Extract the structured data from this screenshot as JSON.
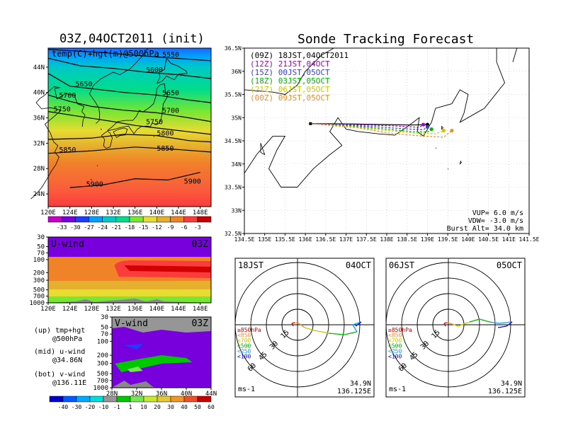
{
  "left_title": "03Z,04OCT2011 (init)",
  "right_title": "Sonde Tracking Forecast",
  "side_notes": [
    {
      "line1": "(up) tmp+hgt",
      "line2": "@500hPa"
    },
    {
      "line1": "(mid) u-wind",
      "line2": "@34.86N"
    },
    {
      "line1": "(bot) v-wind",
      "line2": "@136.11E"
    }
  ],
  "chart_data": [
    {
      "id": "temp-hgt-map",
      "type": "heatmap",
      "title": "temp(C)+hgt(m)@500hPa",
      "x_ticks": [
        "120E",
        "124E",
        "128E",
        "132E",
        "136E",
        "140E",
        "144E",
        "148E"
      ],
      "y_ticks": [
        "24N",
        "28N",
        "32N",
        "36N",
        "40N",
        "44N"
      ],
      "xlim": [
        120,
        150
      ],
      "ylim": [
        22,
        47
      ],
      "colorbar_ticks": [
        "-33",
        "-30",
        "-27",
        "-24",
        "-21",
        "-18",
        "-15",
        "-12",
        "-9",
        "-6",
        "-3"
      ],
      "colorbar_colors": [
        "#c800c8",
        "#7800dc",
        "#1e3cff",
        "#00a0ff",
        "#00c8c8",
        "#00dc8c",
        "#78e632",
        "#e6dc32",
        "#e6af2d",
        "#f08228",
        "#fa3c3c",
        "#c80000"
      ],
      "contours": [
        {
          "label": "5550",
          "points": [
            [
              120,
              46.8
            ],
            [
              130,
              46.3
            ],
            [
              140,
              45.6
            ],
            [
              150,
              45.0
            ]
          ],
          "label_pos": [
            141,
            45.6
          ]
        },
        {
          "label": "5600",
          "points": [
            [
              120,
              45.4
            ],
            [
              126,
              44.2
            ],
            [
              132,
              43.8
            ],
            [
              138,
              43.2
            ],
            [
              144,
              42.8
            ],
            [
              150,
              42.2
            ]
          ],
          "label_pos": [
            138,
            43.2
          ]
        },
        {
          "label": "5650",
          "points": [
            [
              120,
              43.0
            ],
            [
              124,
              41.0
            ],
            [
              128,
              40.6
            ],
            [
              134,
              40.0
            ],
            [
              140,
              39.6
            ],
            [
              146,
              38.8
            ],
            [
              150,
              38.4
            ]
          ],
          "label_pos": [
            125,
            41.0
          ]
        },
        {
          "label": "5650",
          "points": [],
          "label_pos": [
            141,
            39.6
          ]
        },
        {
          "label": "5700",
          "points": [
            [
              120,
              39.6
            ],
            [
              124,
              38.6
            ],
            [
              128,
              37.8
            ],
            [
              134,
              37.2
            ],
            [
              140,
              36.8
            ],
            [
              146,
              36.0
            ],
            [
              150,
              35.4
            ]
          ],
          "label_pos": [
            122,
            39.2
          ]
        },
        {
          "label": "5700",
          "points": [],
          "label_pos": [
            141,
            36.8
          ]
        },
        {
          "label": "5750",
          "points": [
            [
              120,
              37.0
            ],
            [
              126,
              36.2
            ],
            [
              132,
              35.4
            ],
            [
              136,
              34.8
            ],
            [
              140,
              34.4
            ],
            [
              146,
              33.8
            ],
            [
              150,
              33.4
            ]
          ],
          "label_pos": [
            121,
            37.0
          ]
        },
        {
          "label": "5750",
          "points": [],
          "label_pos": [
            138,
            35.0
          ]
        },
        {
          "label": "5800",
          "points": [
            [
              120,
              32.6
            ],
            [
              128,
              32.8
            ],
            [
              134,
              33.4
            ],
            [
              140,
              33.2
            ],
            [
              146,
              32.4
            ],
            [
              150,
              32.2
            ]
          ],
          "label_pos": [
            140,
            33.2
          ]
        },
        {
          "label": "5850",
          "points": [
            [
              120,
              30.4
            ],
            [
              128,
              30.8
            ],
            [
              136,
              31.4
            ],
            [
              144,
              31.0
            ],
            [
              150,
              30.6
            ]
          ],
          "label_pos": [
            122,
            30.6
          ]
        },
        {
          "label": "5850",
          "points": [],
          "label_pos": [
            140,
            30.8
          ]
        },
        {
          "label": "5900",
          "points": [
            [
              124,
              25.0
            ],
            [
              130,
              25.4
            ],
            [
              136,
              26.4
            ],
            [
              142,
              26.2
            ],
            [
              148,
              27.4
            ]
          ],
          "label_pos": [
            127,
            25.2
          ]
        },
        {
          "label": "5900",
          "points": [],
          "label_pos": [
            145,
            25.6
          ]
        }
      ]
    },
    {
      "id": "u-wind-section",
      "type": "heatmap",
      "title": "U-wind",
      "time_label": "03Z",
      "x_ticks": [
        "120E",
        "124E",
        "128E",
        "132E",
        "136E",
        "140E",
        "144E",
        "148E"
      ],
      "y_ticks": [
        "30",
        "50",
        "70",
        "100",
        "200",
        "300",
        "500",
        "700",
        "1000"
      ],
      "xlim": [
        120,
        150
      ],
      "ylim_hpa": [
        1000,
        30
      ]
    },
    {
      "id": "v-wind-section",
      "type": "heatmap",
      "title": "V-wind",
      "time_label": "03Z",
      "x_ticks": [
        "28N",
        "32N",
        "36N",
        "40N",
        "44N"
      ],
      "y_ticks": [
        "30",
        "50",
        "70",
        "100",
        "200",
        "300",
        "500",
        "700",
        "1000"
      ],
      "xlim": [
        28,
        44
      ],
      "ylim_hpa": [
        1000,
        30
      ],
      "colorbar_ticks": [
        "-40",
        "-30",
        "-20",
        "-10",
        "-1",
        "1",
        "10",
        "20",
        "30",
        "40",
        "50",
        "60"
      ],
      "colorbar_colors": [
        "#0000c8",
        "#005aff",
        "#00aaff",
        "#00dcdc",
        "#969696",
        "#00c800",
        "#78e650",
        "#c8e632",
        "#e6c832",
        "#f09628",
        "#f05028",
        "#c80000"
      ]
    },
    {
      "id": "sonde-track-map",
      "type": "line",
      "x_ticks": [
        "134.5E",
        "135E",
        "135.5E",
        "136E",
        "136.5E",
        "137E",
        "137.5E",
        "138E",
        "138.5E",
        "139E",
        "139.5E",
        "140E",
        "140.5E",
        "141E",
        "141.5E"
      ],
      "y_ticks": [
        "32.5N",
        "33N",
        "33.5N",
        "34N",
        "34.5N",
        "35N",
        "35.5N",
        "36N",
        "36.5N"
      ],
      "xlim": [
        134.5,
        141.5
      ],
      "ylim": [
        32.5,
        36.5
      ],
      "series": [
        {
          "name": "(09Z)  18JST,04OCT2011",
          "color": "#000000"
        },
        {
          "name": "(12Z)  21JST,04OCT",
          "color": "#a000c8"
        },
        {
          "name": "(15Z)  00JST,05OCT",
          "color": "#3c3cdc"
        },
        {
          "name": "(18Z)  03JST,05OCT",
          "color": "#00b400"
        },
        {
          "name": "(21Z)  06JST,05OCT",
          "color": "#c8c800"
        },
        {
          "name": "(00Z)  09JST,05OCT",
          "color": "#f08c28"
        }
      ],
      "params": [
        "VUP=  6.0  m/s",
        "VDW= -3.0  m/s",
        "Burst Alt=  34.0  km"
      ]
    },
    {
      "id": "hodograph-18jst",
      "type": "line",
      "time_label": "18JST",
      "date_label": "04OCT",
      "ring_labels": [
        "15",
        "30",
        "45",
        "60"
      ],
      "unit": "ms-1",
      "lat": "34.9N",
      "lon": "136.125E",
      "levels": [
        "≥850hPa",
        "<850",
        "<700",
        "<500",
        "<250",
        "<100"
      ],
      "level_colors": [
        "#c80000",
        "#f08c28",
        "#c8c800",
        "#00b400",
        "#00a0ff",
        "#0000ff"
      ]
    },
    {
      "id": "hodograph-06jst",
      "type": "line",
      "time_label": "06JST",
      "date_label": "05OCT",
      "ring_labels": [
        "15",
        "30",
        "45",
        "60"
      ],
      "unit": "ms-1",
      "lat": "34.9N",
      "lon": "136.125E",
      "levels": [
        "≥850hPa",
        "<850",
        "<700",
        "<500",
        "<250",
        "<100"
      ],
      "level_colors": [
        "#c80000",
        "#f08c28",
        "#c8c800",
        "#00b400",
        "#00a0ff",
        "#0000ff"
      ]
    }
  ]
}
